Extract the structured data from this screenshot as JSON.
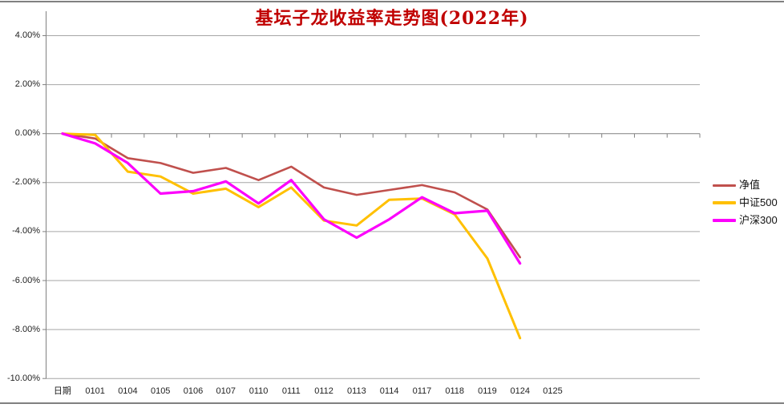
{
  "chart_data": {
    "type": "line",
    "title": "基坛子龙收益率走势图(2022年)",
    "title_color": "#C00000",
    "categories": [
      "日期",
      "0101",
      "0104",
      "0105",
      "0106",
      "0107",
      "0110",
      "0111",
      "0112",
      "0113",
      "0114",
      "0117",
      "0118",
      "0119",
      "0124",
      "0125"
    ],
    "y_ticks": [
      {
        "label": "4.00%",
        "value": 4
      },
      {
        "label": "2.00%",
        "value": 2
      },
      {
        "label": "0.00%",
        "value": 0
      },
      {
        "label": "-2.00%",
        "value": -2
      },
      {
        "label": "-4.00%",
        "value": -4
      },
      {
        "label": "-6.00%",
        "value": -6
      },
      {
        "label": "-8.00%",
        "value": -8
      },
      {
        "label": "-10.00%",
        "value": -10
      }
    ],
    "ylim": [
      -10,
      4
    ],
    "grid": true,
    "legend_position": "right",
    "total_category_slots": 20,
    "grid_color": "#A6A6A6",
    "axis_color": "#808080",
    "series": [
      {
        "name": "净值",
        "color": "#C0504D",
        "stroke_width": 2.6,
        "values": [
          0,
          -0.2,
          -1.0,
          -1.2,
          -1.6,
          -1.4,
          -1.9,
          -1.35,
          -2.2,
          -2.5,
          -2.3,
          -2.1,
          -2.4,
          -3.1,
          -5.05,
          null
        ]
      },
      {
        "name": "中证500",
        "color": "#FFC000",
        "stroke_width": 3,
        "values": [
          0,
          -0.05,
          -1.55,
          -1.75,
          -2.45,
          -2.25,
          -3.0,
          -2.2,
          -3.55,
          -3.75,
          -2.7,
          -2.65,
          -3.3,
          -5.1,
          -8.35,
          null
        ]
      },
      {
        "name": "沪深300",
        "color": "#FC00FC",
        "stroke_width": 3.2,
        "values": [
          0,
          -0.4,
          -1.2,
          -2.45,
          -2.35,
          -1.95,
          -2.85,
          -1.9,
          -3.5,
          -4.25,
          -3.5,
          -2.6,
          -3.25,
          -3.15,
          -5.3,
          null
        ]
      }
    ]
  }
}
